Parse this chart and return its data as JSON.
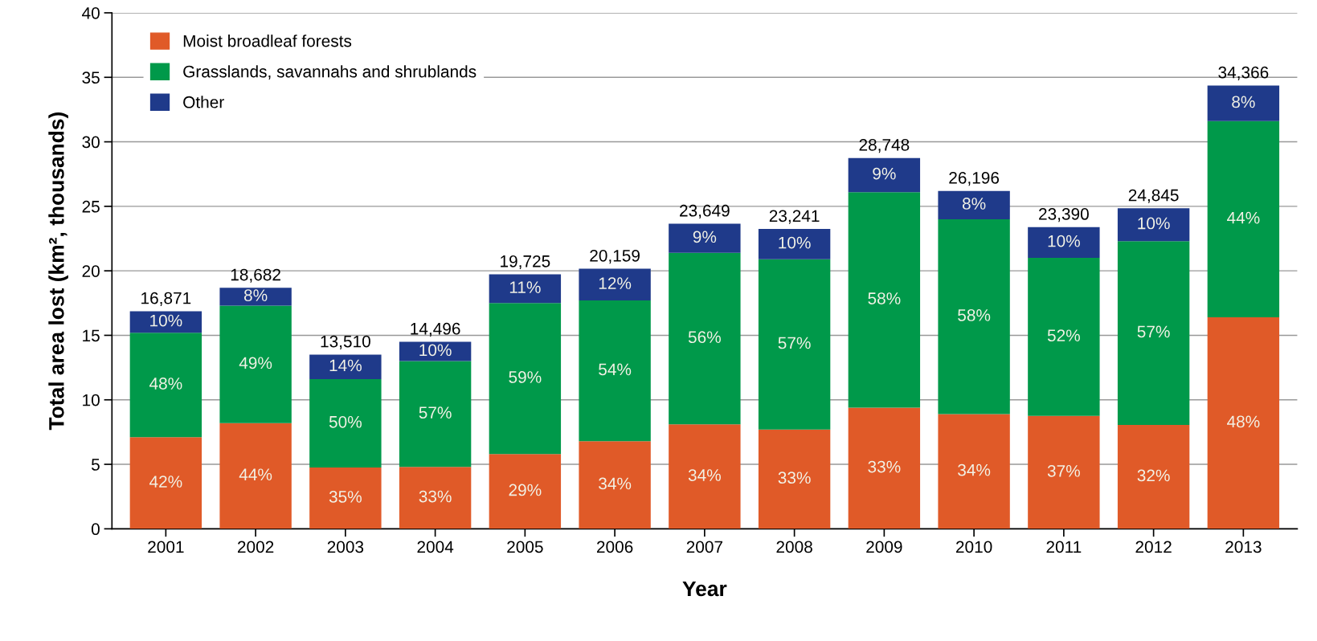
{
  "chart_data": {
    "type": "bar",
    "stacked": true,
    "xlabel": "Year",
    "ylabel": "Total area lost (km², thousands)",
    "categories": [
      "2001",
      "2002",
      "2003",
      "2004",
      "2005",
      "2006",
      "2007",
      "2008",
      "2009",
      "2010",
      "2011",
      "2012",
      "2013"
    ],
    "series": [
      {
        "name": "Moist broadleaf forests",
        "color": "#e05a28",
        "values": [
          7.1,
          8.2,
          4.75,
          4.8,
          5.8,
          6.8,
          8.1,
          7.7,
          9.4,
          8.9,
          8.75,
          8.05,
          16.4
        ]
      },
      {
        "name": "Grasslands, savannahs and shrublands",
        "color": "#00994a",
        "values": [
          8.1,
          9.1,
          6.85,
          8.2,
          11.7,
          10.9,
          13.3,
          13.2,
          16.7,
          15.1,
          12.25,
          14.25,
          15.2
        ]
      },
      {
        "name": "Other",
        "color": "#1f3a8a",
        "values": [
          1.671,
          1.382,
          1.91,
          1.496,
          2.225,
          2.459,
          2.249,
          2.341,
          2.648,
          2.196,
          2.39,
          2.545,
          2.766
        ]
      }
    ],
    "annotations": [
      "42%",
      "48%",
      "10%",
      "44%",
      "49%",
      "8%",
      "35%",
      "50%",
      "14%",
      "33%",
      "57%",
      "10%",
      "29%",
      "59%",
      "11%",
      "34%",
      "54%",
      "12%",
      "34%",
      "56%",
      "9%",
      "33%",
      "57%",
      "10%",
      "33%",
      "58%",
      "9%",
      "34%",
      "58%",
      "8%",
      "37%",
      "52%",
      "10%",
      "32%",
      "57%",
      "10%",
      "48%",
      "44%",
      "8%"
    ],
    "totals": [
      "16,871",
      "18,682",
      "13,510",
      "14,496",
      "19,725",
      "20,159",
      "23,649",
      "23,241",
      "28,748",
      "26,196",
      "23,390",
      "24,845",
      "34,366"
    ],
    "ylim": [
      0,
      40
    ],
    "yticks": [
      0,
      5,
      10,
      15,
      20,
      25,
      30,
      35,
      40
    ],
    "grid": "y",
    "legend": "top left"
  }
}
